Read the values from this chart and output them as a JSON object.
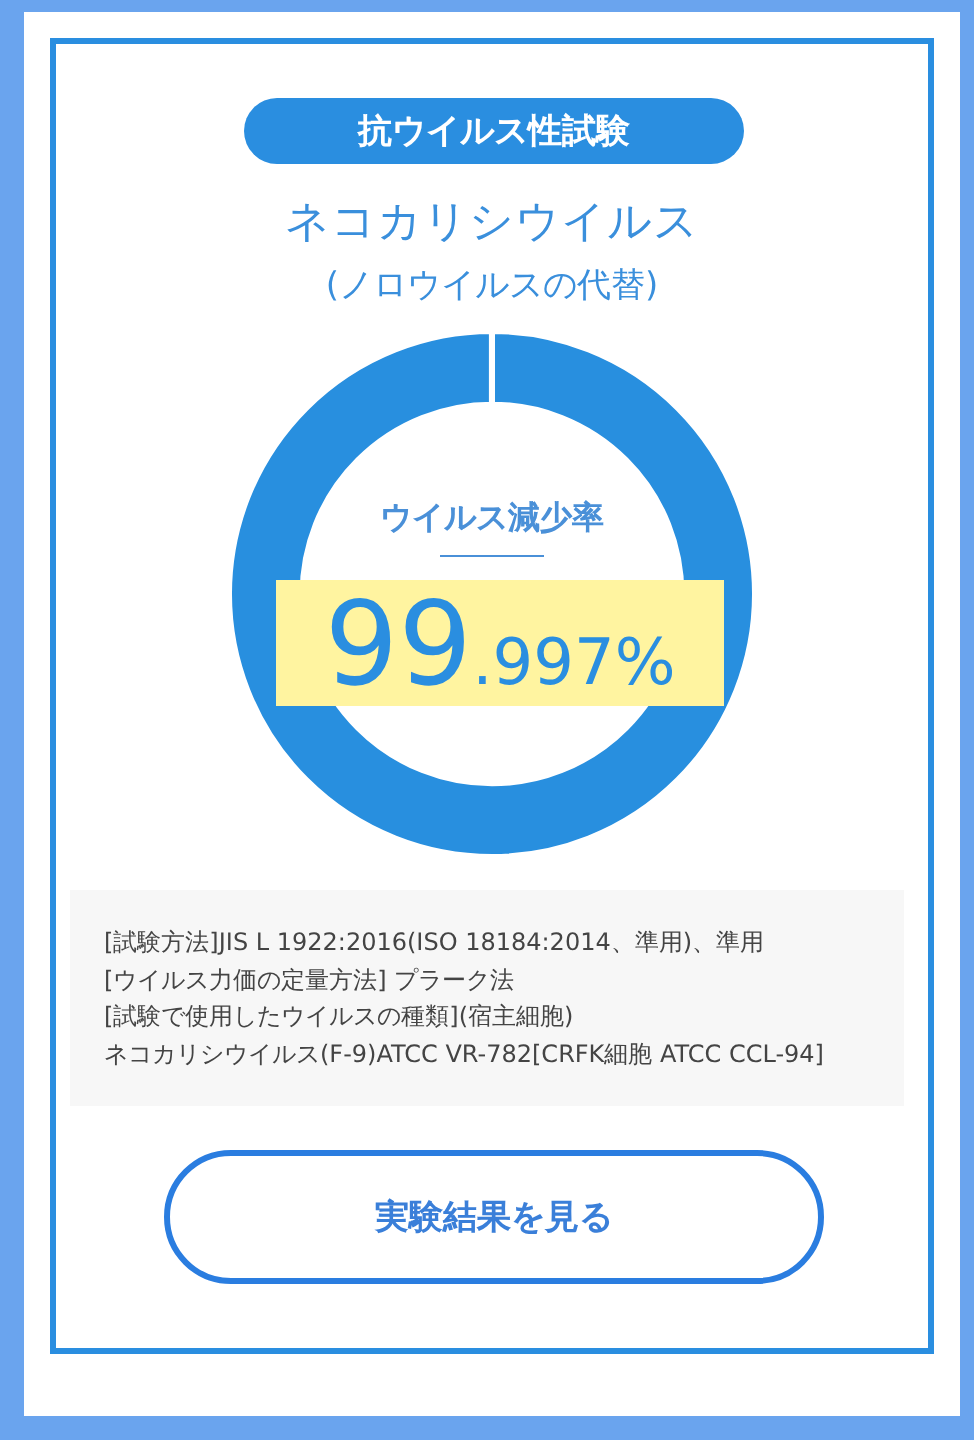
{
  "chart_data": {
    "type": "donut",
    "title": "ネコカリシウイルス",
    "subtitle": "(ノロウイルスの代替)",
    "categories": [
      "ウイルス減少率",
      null
    ],
    "values": [
      99.997,
      0.003
    ],
    "colors": [
      "#288fdf",
      "#ffffff"
    ],
    "value_labels": [
      "99.997%",
      null
    ],
    "annotations": [
      "抗ウイルス性試験",
      "[試験方法]JIS L 1922:2016(ISO 18184:2014、準用)、準用",
      "[ウイルス力価の定量方法] プラーク法",
      "[試験で使用したウイルスの種類](宿主細胞)",
      "ネコカリシウイルス(F-9)ATCC VR-782[CRFK細胞 ATCC CCL-94]",
      "実験結果を見る"
    ]
  }
}
